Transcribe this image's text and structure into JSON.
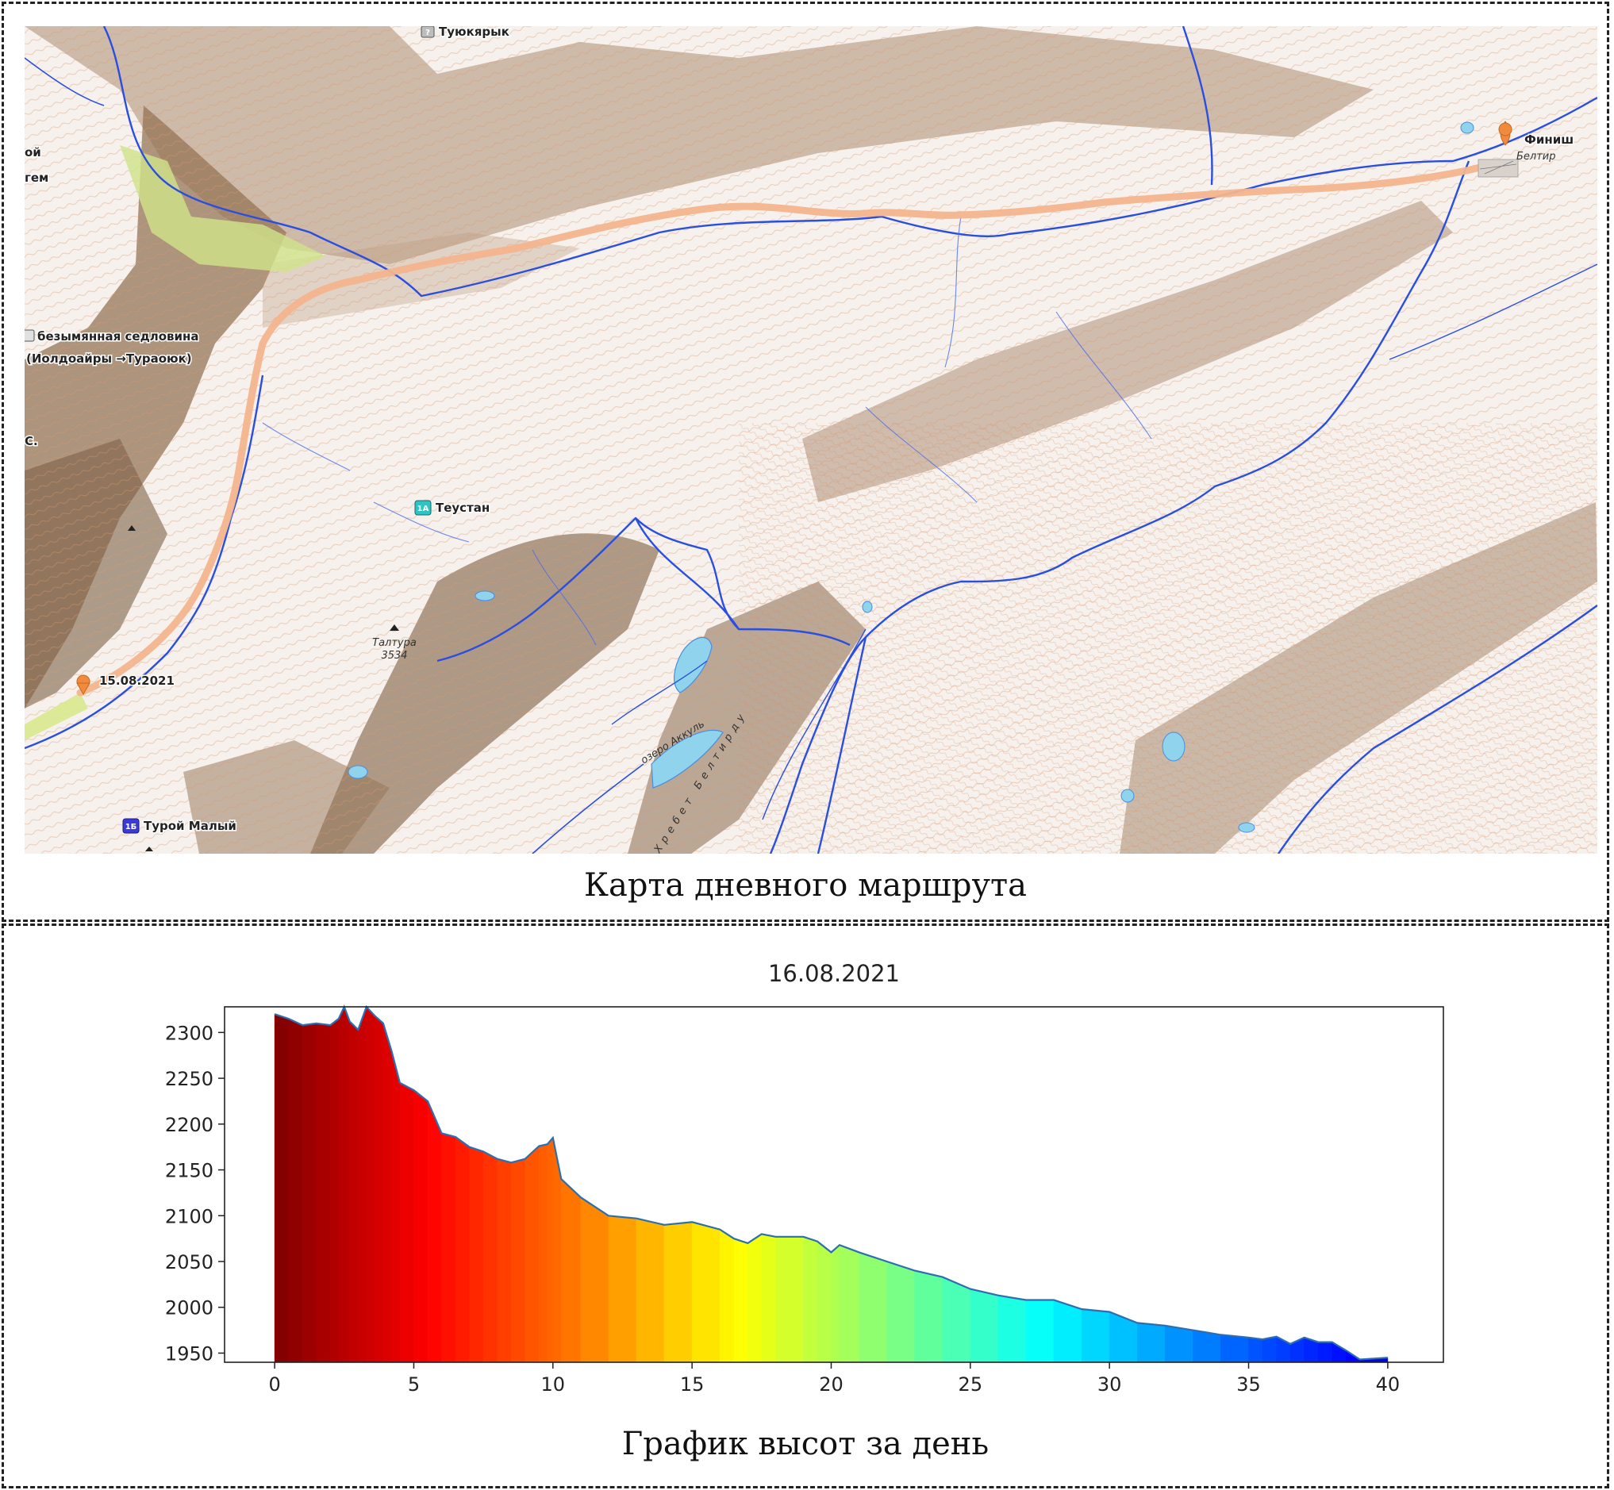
{
  "map": {
    "caption": "Карта дневного маршрута",
    "labels": {
      "pass_top": "Туюкярык",
      "finish": "Финиш",
      "finish_town": "Белтир",
      "saddle_line1": "безымянная седловина",
      "saddle_line2": "(Иолдоайры →Тураоюк)",
      "teustan": "Теустан",
      "teustan_badge": "1А",
      "taltura_name": "Талтура",
      "taltura_elev": "3534",
      "start_date": "15.08.2021",
      "turoy": "Турой Малый",
      "turoy_badge": "1Б",
      "lake": "озеро Аккуль",
      "ridge": "Хребет Белтирду",
      "frag_1": "ой",
      "frag_2": "гем",
      "frag_3": "С.",
      "badge_q": "?"
    },
    "colors": {
      "river": "#2a4fe0",
      "track": "#f3b48e",
      "marker": "#f08a3c",
      "relief_dark": "#7a5a3e",
      "contour": "#d98f63",
      "lake": "#8fd3ec",
      "teustan_badge": "#2ec4c4",
      "turoy_badge": "#3a3ad6"
    }
  },
  "chart_data": {
    "type": "area",
    "title": "16.08.2021",
    "xlabel": "",
    "ylabel": "",
    "xlim": [
      -1.8,
      42
    ],
    "ylim": [
      1940,
      2328
    ],
    "xticks": [
      0,
      5,
      10,
      15,
      20,
      25,
      30,
      35,
      40
    ],
    "yticks": [
      1950,
      2000,
      2050,
      2100,
      2150,
      2200,
      2250,
      2300
    ],
    "colormap": "jet",
    "color_by": "slope",
    "x": [
      0,
      0.5,
      1.0,
      1.5,
      2.0,
      2.3,
      2.5,
      2.7,
      3.0,
      3.3,
      3.6,
      3.9,
      4.2,
      4.5,
      5.0,
      5.5,
      6.0,
      6.5,
      7.0,
      7.5,
      8.0,
      8.5,
      9.0,
      9.5,
      9.8,
      10.0,
      10.3,
      11.0,
      12.0,
      13.0,
      14.0,
      15.0,
      16.0,
      16.5,
      17.0,
      17.5,
      18.0,
      19.0,
      19.5,
      20.0,
      20.3,
      21.0,
      22.0,
      23.0,
      24.0,
      25.0,
      26.0,
      27.0,
      28.0,
      29.0,
      30.0,
      31.0,
      32.0,
      33.0,
      34.0,
      35.0,
      35.5,
      36.0,
      36.5,
      37.0,
      37.5,
      38.0,
      38.5,
      39.0,
      40.0
    ],
    "elevation": [
      2320,
      2315,
      2308,
      2310,
      2308,
      2315,
      2328,
      2312,
      2303,
      2328,
      2318,
      2310,
      2280,
      2245,
      2237,
      2225,
      2190,
      2186,
      2175,
      2170,
      2162,
      2158,
      2162,
      2176,
      2178,
      2185,
      2140,
      2120,
      2100,
      2097,
      2090,
      2093,
      2085,
      2075,
      2070,
      2080,
      2077,
      2077,
      2072,
      2060,
      2068,
      2060,
      2050,
      2040,
      2033,
      2020,
      2013,
      2008,
      2008,
      1998,
      1995,
      1983,
      1980,
      1975,
      1970,
      1967,
      1965,
      1968,
      1960,
      1967,
      1962,
      1962,
      1953,
      1943,
      1945
    ]
  }
}
